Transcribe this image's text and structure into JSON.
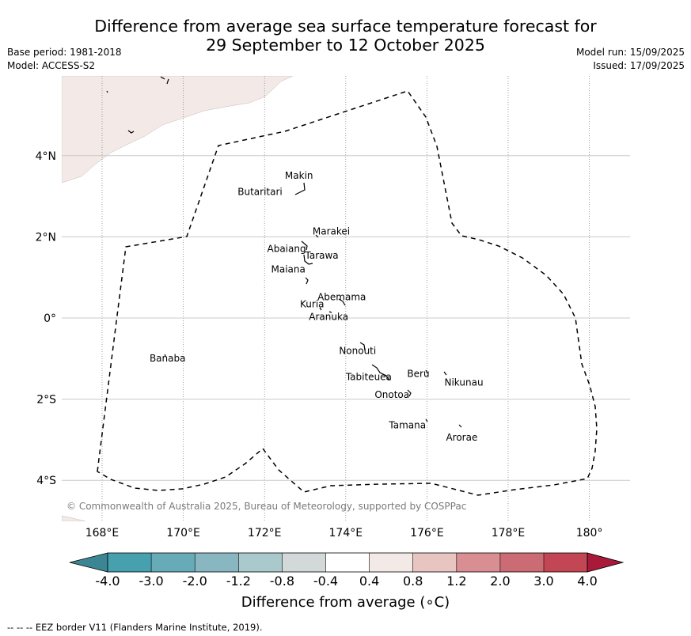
{
  "title": {
    "line1": "Difference from average sea surface temperature forecast for",
    "line2": "29 September to 12 October 2025"
  },
  "meta_left": {
    "base_period": "Base period: 1981-2018",
    "model": "Model: ACCESS-S2"
  },
  "meta_right": {
    "model_run": "Model run: 15/09/2025",
    "issued": "Issued: 17/09/2025"
  },
  "copyright": "© Commonwealth of Australia 2025, Bureau of Meteorology, supported by COSPPac",
  "footnote": "--  --  -- EEZ border V11 (Flanders Marine Institute, 2019).",
  "map": {
    "lon_range": [
      167,
      181
    ],
    "lat_range": [
      -5,
      6
    ],
    "lon_ticks": [
      {
        "lon": 168,
        "label": "168°E"
      },
      {
        "lon": 170,
        "label": "170°E"
      },
      {
        "lon": 172,
        "label": "172°E"
      },
      {
        "lon": 174,
        "label": "174°E"
      },
      {
        "lon": 176,
        "label": "176°E"
      },
      {
        "lon": 178,
        "label": "178°E"
      },
      {
        "lon": 180,
        "label": "180°"
      }
    ],
    "lat_ticks": [
      {
        "lat": 4,
        "label": "4°N"
      },
      {
        "lat": 2,
        "label": "2°N"
      },
      {
        "lat": 0,
        "label": "0°"
      },
      {
        "lat": -2,
        "label": "2°S"
      },
      {
        "lat": -4,
        "label": "4°S"
      }
    ],
    "ocean_anomaly_color": "#ffffff",
    "warm_patch_color": "#f3e9e7",
    "islands": [
      {
        "name": "Makin",
        "lon": 172.95,
        "lat": 3.1
      },
      {
        "name": "Butaritari",
        "lon": 172.8,
        "lat": 3.05
      },
      {
        "name": "Marakei",
        "lon": 173.3,
        "lat": 2.0
      },
      {
        "name": "Abaiang",
        "lon": 173.0,
        "lat": 1.8
      },
      {
        "name": "Tarawa",
        "lon": 173.0,
        "lat": 1.4
      },
      {
        "name": "Maiana",
        "lon": 173.0,
        "lat": 0.95
      },
      {
        "name": "Abemama",
        "lon": 173.85,
        "lat": 0.4
      },
      {
        "name": "Kuria",
        "lon": 173.4,
        "lat": 0.22
      },
      {
        "name": "Aranuka",
        "lon": 173.6,
        "lat": 0.17
      },
      {
        "name": "Banaba",
        "lon": 169.5,
        "lat": -0.9
      },
      {
        "name": "Nonouti",
        "lon": 174.4,
        "lat": -0.65
      },
      {
        "name": "Tabiteuea",
        "lon": 174.8,
        "lat": -1.3
      },
      {
        "name": "Beru",
        "lon": 176.0,
        "lat": -1.35
      },
      {
        "name": "Nikunau",
        "lon": 176.45,
        "lat": -1.35
      },
      {
        "name": "Onotoa",
        "lon": 175.55,
        "lat": -1.85
      },
      {
        "name": "Tamana",
        "lon": 176.0,
        "lat": -2.5
      },
      {
        "name": "Arorae",
        "lon": 176.8,
        "lat": -2.65
      }
    ]
  },
  "colorbar": {
    "title": "Difference from average (∘C)",
    "tick_labels": [
      "-4.0",
      "-3.0",
      "-2.0",
      "-1.2",
      "-0.8",
      "-0.4",
      "0.4",
      "0.8",
      "1.2",
      "2.0",
      "3.0",
      "4.0"
    ],
    "colors": [
      "#3c8694",
      "#47a0ad",
      "#68abb8",
      "#88b7c1",
      "#a9c9cc",
      "#d3d8d8",
      "#ffffff",
      "#f3e9e7",
      "#e8c5c1",
      "#d98e94",
      "#cb6b73",
      "#c24653",
      "#a8193a"
    ]
  }
}
